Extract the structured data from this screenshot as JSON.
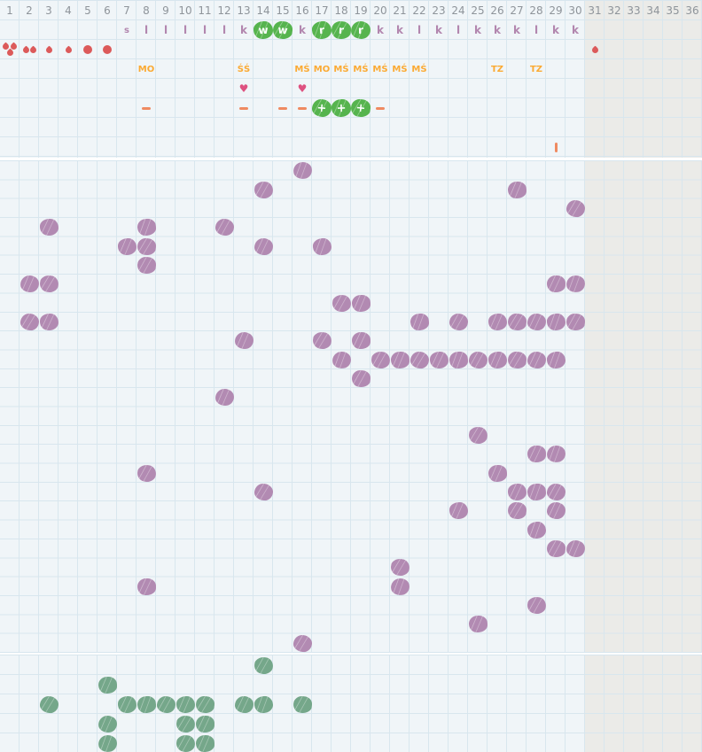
{
  "grid": {
    "total_columns": 36,
    "active_columns": 30,
    "day_numbers": [
      "1",
      "2",
      "3",
      "4",
      "5",
      "6",
      "7",
      "8",
      "9",
      "10",
      "11",
      "12",
      "13",
      "14",
      "15",
      "16",
      "17",
      "18",
      "19",
      "20",
      "21",
      "22",
      "23",
      "24",
      "25",
      "26",
      "27",
      "28",
      "29",
      "30",
      "31",
      "32",
      "33",
      "34",
      "35",
      "36"
    ]
  },
  "symbol_rows": {
    "observation_letters": [
      {
        "col": 7,
        "ch": "s",
        "green": false
      },
      {
        "col": 8,
        "ch": "l",
        "green": false
      },
      {
        "col": 9,
        "ch": "l",
        "green": false
      },
      {
        "col": 10,
        "ch": "l",
        "green": false
      },
      {
        "col": 11,
        "ch": "l",
        "green": false
      },
      {
        "col": 12,
        "ch": "l",
        "green": false
      },
      {
        "col": 13,
        "ch": "k",
        "green": false
      },
      {
        "col": 14,
        "ch": "w",
        "green": true
      },
      {
        "col": 15,
        "ch": "w",
        "green": true
      },
      {
        "col": 16,
        "ch": "k",
        "green": false
      },
      {
        "col": 17,
        "ch": "r",
        "green": true
      },
      {
        "col": 18,
        "ch": "r",
        "green": true
      },
      {
        "col": 19,
        "ch": "r",
        "green": true
      },
      {
        "col": 20,
        "ch": "k",
        "green": false
      },
      {
        "col": 21,
        "ch": "k",
        "green": false
      },
      {
        "col": 22,
        "ch": "l",
        "green": false
      },
      {
        "col": 23,
        "ch": "k",
        "green": false
      },
      {
        "col": 24,
        "ch": "l",
        "green": false
      },
      {
        "col": 25,
        "ch": "k",
        "green": false
      },
      {
        "col": 26,
        "ch": "k",
        "green": false
      },
      {
        "col": 27,
        "ch": "k",
        "green": false
      },
      {
        "col": 28,
        "ch": "l",
        "green": false
      },
      {
        "col": 29,
        "ch": "k",
        "green": false
      },
      {
        "col": 30,
        "ch": "k",
        "green": false
      }
    ],
    "bleeding_marks": [
      {
        "col": 1,
        "type": "drops3"
      },
      {
        "col": 2,
        "type": "drops2"
      },
      {
        "col": 3,
        "type": "drop"
      },
      {
        "col": 4,
        "type": "drop"
      },
      {
        "col": 5,
        "type": "dot"
      },
      {
        "col": 6,
        "type": "dot"
      },
      {
        "col": 31,
        "type": "drop"
      }
    ],
    "codes": [
      {
        "col": 8,
        "text": "MO"
      },
      {
        "col": 13,
        "text": "ŚŚ"
      },
      {
        "col": 16,
        "text": "MŚ"
      },
      {
        "col": 17,
        "text": "MO"
      },
      {
        "col": 18,
        "text": "MŚ"
      },
      {
        "col": 19,
        "text": "MŚ"
      },
      {
        "col": 20,
        "text": "MŚ"
      },
      {
        "col": 21,
        "text": "MŚ"
      },
      {
        "col": 22,
        "text": "MŚ"
      },
      {
        "col": 26,
        "text": "TZ"
      },
      {
        "col": 28,
        "text": "TZ"
      }
    ],
    "heart_cols": [
      13,
      16
    ],
    "result_symbols": [
      {
        "col": 8,
        "type": "dash"
      },
      {
        "col": 13,
        "type": "dash"
      },
      {
        "col": 15,
        "type": "dash"
      },
      {
        "col": 16,
        "type": "dash"
      },
      {
        "col": 17,
        "type": "plus"
      },
      {
        "col": 18,
        "type": "plus"
      },
      {
        "col": 19,
        "type": "plus"
      },
      {
        "col": 20,
        "type": "dash"
      }
    ],
    "marker_bars": [
      {
        "col": 29,
        "type": "bar"
      }
    ],
    "plus_label": "+"
  },
  "chart_data": {
    "type": "scatter",
    "x_axis": {
      "label": "cycle day column",
      "range": [
        1,
        36
      ],
      "active_range": [
        1,
        30
      ]
    },
    "grid": "on",
    "series": [
      {
        "name": "purple-marks",
        "grid_rows": 26,
        "points": [
          [
            16,
            1
          ],
          [
            14,
            2
          ],
          [
            27,
            2
          ],
          [
            30,
            3
          ],
          [
            3,
            4
          ],
          [
            8,
            4
          ],
          [
            12,
            4
          ],
          [
            7,
            5
          ],
          [
            8,
            5
          ],
          [
            14,
            5
          ],
          [
            17,
            5
          ],
          [
            8,
            6
          ],
          [
            2,
            7
          ],
          [
            3,
            7
          ],
          [
            29,
            7
          ],
          [
            30,
            7
          ],
          [
            18,
            8
          ],
          [
            19,
            8
          ],
          [
            2,
            9
          ],
          [
            3,
            9
          ],
          [
            22,
            9
          ],
          [
            24,
            9
          ],
          [
            26,
            9
          ],
          [
            27,
            9
          ],
          [
            28,
            9
          ],
          [
            29,
            9
          ],
          [
            30,
            9
          ],
          [
            13,
            10
          ],
          [
            17,
            10
          ],
          [
            19,
            10
          ],
          [
            18,
            11
          ],
          [
            20,
            11
          ],
          [
            21,
            11
          ],
          [
            22,
            11
          ],
          [
            23,
            11
          ],
          [
            24,
            11
          ],
          [
            25,
            11
          ],
          [
            26,
            11
          ],
          [
            27,
            11
          ],
          [
            28,
            11
          ],
          [
            29,
            11
          ],
          [
            19,
            12
          ],
          [
            12,
            13
          ],
          [
            25,
            15
          ],
          [
            28,
            16
          ],
          [
            29,
            16
          ],
          [
            8,
            17
          ],
          [
            26,
            17
          ],
          [
            14,
            18
          ],
          [
            27,
            18
          ],
          [
            28,
            18
          ],
          [
            29,
            18
          ],
          [
            24,
            19
          ],
          [
            27,
            19
          ],
          [
            29,
            19
          ],
          [
            28,
            20
          ],
          [
            29,
            21
          ],
          [
            30,
            21
          ],
          [
            21,
            22
          ],
          [
            8,
            23
          ],
          [
            21,
            23
          ],
          [
            28,
            24
          ],
          [
            25,
            25
          ],
          [
            16,
            26
          ]
        ]
      },
      {
        "name": "green-marks",
        "grid_rows": 5,
        "points": [
          [
            14,
            1
          ],
          [
            6,
            2
          ],
          [
            3,
            3
          ],
          [
            7,
            3
          ],
          [
            8,
            3
          ],
          [
            9,
            3
          ],
          [
            10,
            3
          ],
          [
            11,
            3
          ],
          [
            13,
            3
          ],
          [
            14,
            3
          ],
          [
            16,
            3
          ],
          [
            6,
            4
          ],
          [
            10,
            4
          ],
          [
            11,
            4
          ],
          [
            6,
            5
          ],
          [
            10,
            5
          ],
          [
            11,
            5
          ]
        ]
      }
    ]
  },
  "colors": {
    "cell_bg": "#f0f5f8",
    "gray_zone_bg": "#ebebe8",
    "grid_line": "#d8e6ee",
    "day_number": "#8e949a",
    "letter": "#b286ae",
    "green_blob": "#56b44e",
    "purple_blob": "#b28ab2",
    "bottom_green_blob": "#75a78a",
    "blood_red": "#dc5a5a",
    "coral": "#ef8a61",
    "heart_pink": "#de5180",
    "code_orange": "#fbaa33",
    "separator": "#ffffff"
  }
}
